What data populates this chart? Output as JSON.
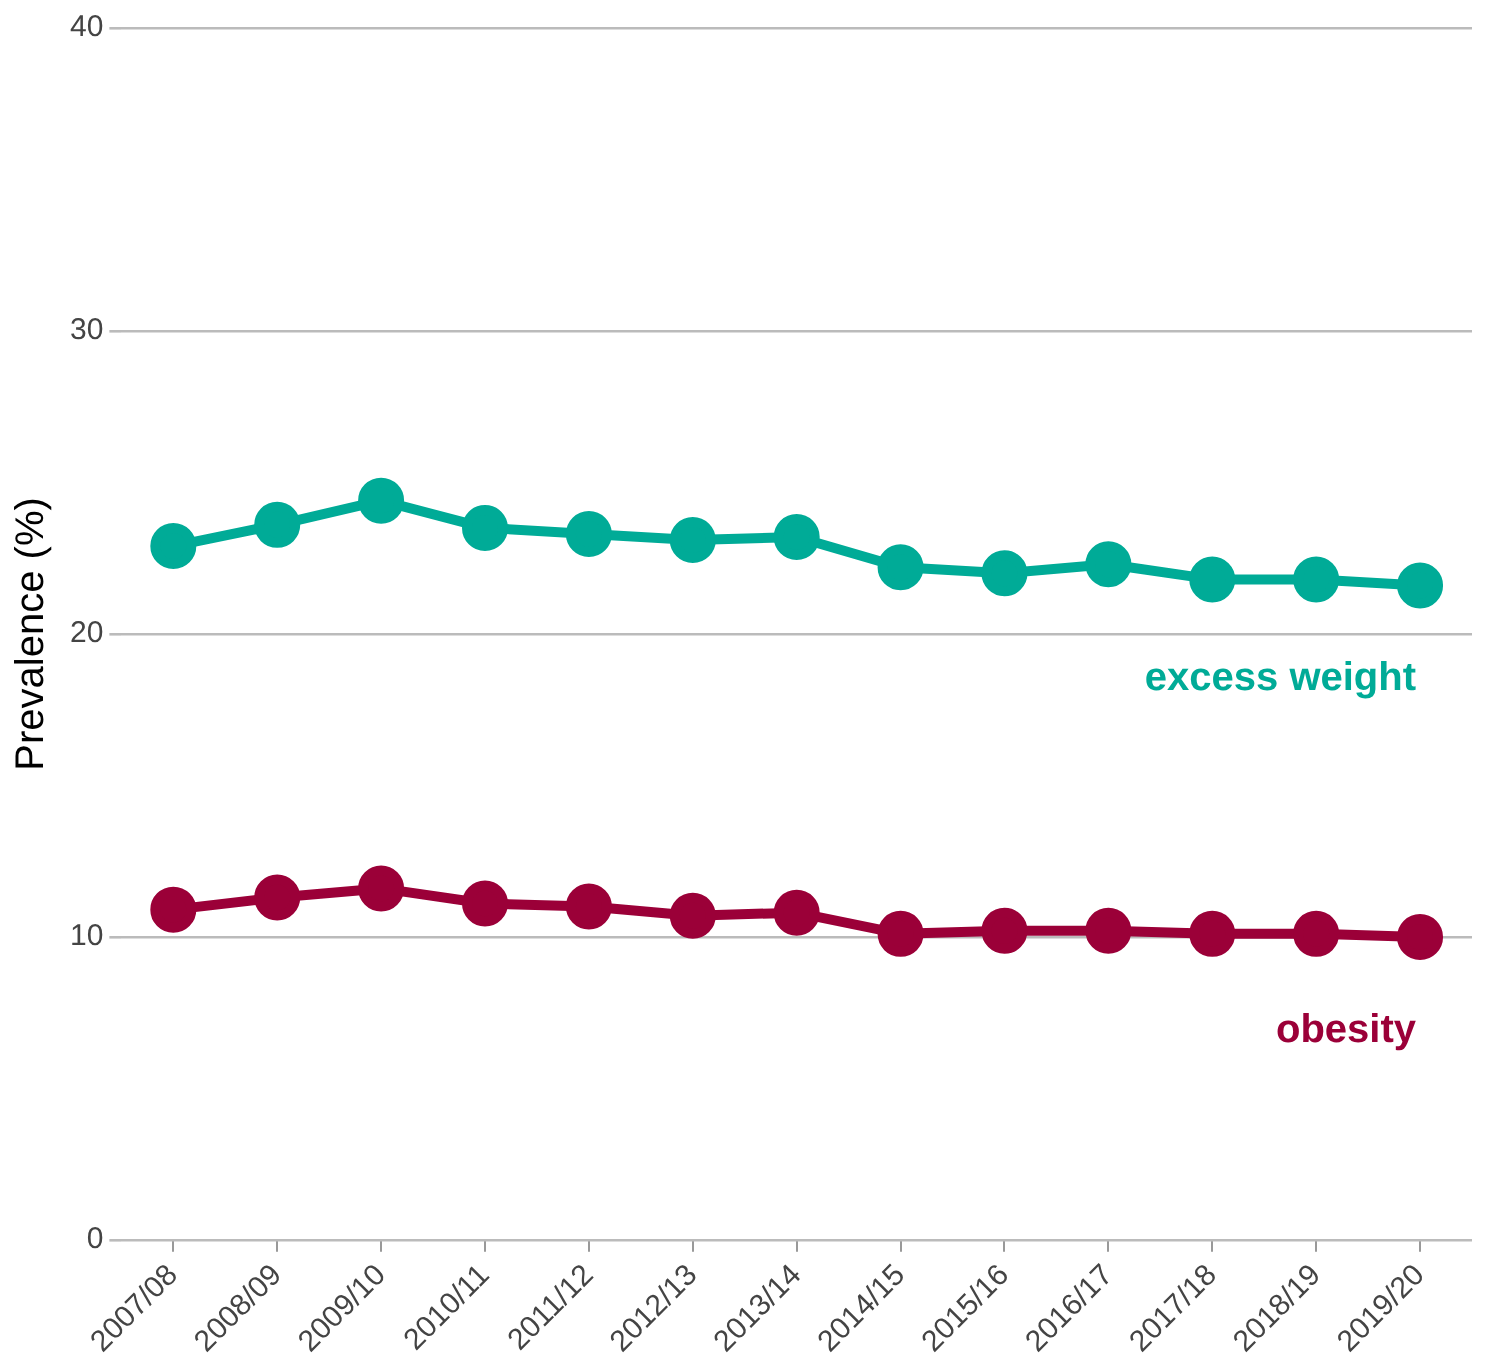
{
  "chart_data": {
    "type": "line",
    "ylabel": "Prevalence (%)",
    "categories": [
      "2007/08",
      "2008/09",
      "2009/10",
      "2010/11",
      "2011/12",
      "2012/13",
      "2013/14",
      "2014/15",
      "2015/16",
      "2016/17",
      "2017/18",
      "2018/19",
      "2019/20"
    ],
    "series": [
      {
        "name": "excess weight",
        "color": "#00ab97",
        "values": [
          22.9,
          23.6,
          24.4,
          23.5,
          23.3,
          23.1,
          23.2,
          22.2,
          22.0,
          22.3,
          21.8,
          21.8,
          21.6
        ]
      },
      {
        "name": "obesity",
        "color": "#9b0038",
        "values": [
          10.9,
          11.3,
          11.6,
          11.1,
          11.0,
          10.7,
          10.8,
          10.1,
          10.2,
          10.2,
          10.1,
          10.1,
          10.0
        ]
      }
    ],
    "ylim": [
      0,
      40
    ],
    "yticks": [
      0,
      10,
      20,
      30,
      40
    ],
    "grid": "y",
    "legend": false,
    "marker": "circle",
    "line_style": "solid"
  }
}
